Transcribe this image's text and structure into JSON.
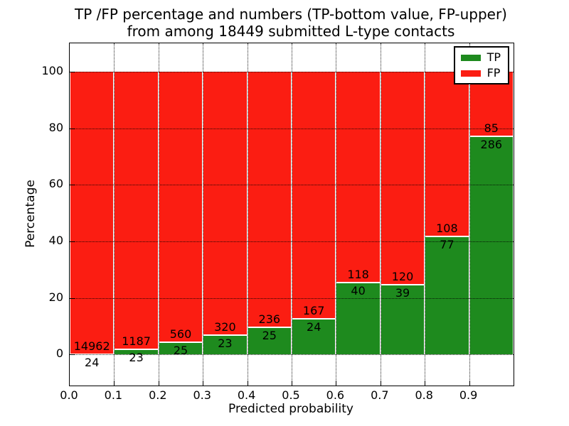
{
  "chart_data": {
    "type": "bar",
    "stacked": true,
    "normalized_to_percent": true,
    "title_line1": "TP /FP percentage and numbers (TP-bottom value, FP-upper)",
    "title_line2": "from among 18449 submitted L-type contacts",
    "total_contacts": 18449,
    "xlabel": "Predicted probability",
    "ylabel": "Percentage",
    "bin_width": 0.1,
    "bin_starts": [
      0.0,
      0.1,
      0.2,
      0.3,
      0.4,
      0.5,
      0.6,
      0.7,
      0.8,
      0.9
    ],
    "series": [
      {
        "name": "TP",
        "color": "#1E8A1E",
        "counts": [
          24,
          23,
          25,
          23,
          25,
          24,
          40,
          39,
          77,
          286
        ]
      },
      {
        "name": "FP",
        "color": "#FB1D12",
        "counts": [
          14962,
          1187,
          560,
          320,
          236,
          167,
          118,
          120,
          108,
          85
        ]
      }
    ],
    "tp_percent": [
      0.16,
      1.9,
      4.27,
      6.71,
      9.58,
      12.57,
      25.32,
      24.53,
      41.62,
      77.09
    ],
    "yticks": [
      0,
      20,
      40,
      60,
      80,
      100
    ],
    "xtick_labels": [
      "0.0",
      "0.1",
      "0.2",
      "0.3",
      "0.4",
      "0.5",
      "0.6",
      "0.7",
      "0.8",
      "0.9"
    ],
    "ylim": [
      -11,
      110
    ],
    "xlim": [
      0.0,
      1.0
    ],
    "grid": "dotted",
    "legend_position": "upper right"
  }
}
